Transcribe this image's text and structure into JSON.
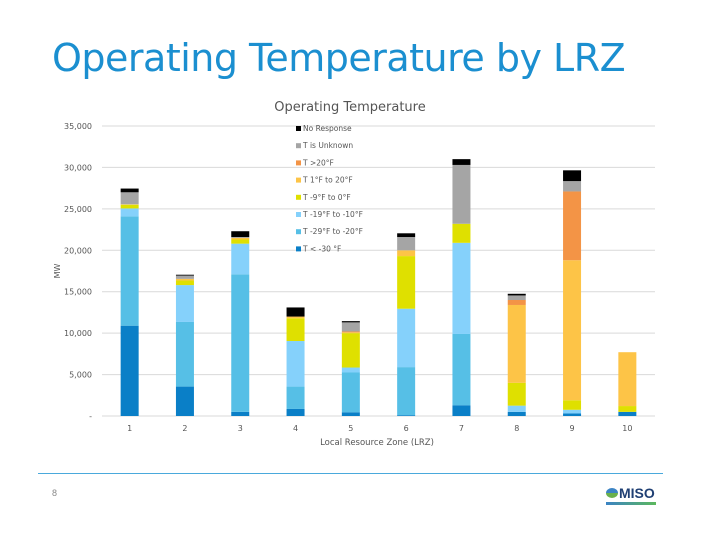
{
  "slide": {
    "title": "Operating Temperature by LRZ",
    "page_number": "8",
    "logo_text": "MISO",
    "accent_color": "#1b8fd0"
  },
  "chart_data": {
    "type": "bar",
    "stacked": true,
    "title": "Operating Temperature",
    "xlabel": "Local Resource Zone (LRZ)",
    "ylabel": "MW",
    "ylim": [
      0,
      35000
    ],
    "yticks": [
      0,
      5000,
      10000,
      15000,
      20000,
      25000,
      30000,
      35000
    ],
    "ytick_labels": [
      "-",
      "5,000",
      "10,000",
      "15,000",
      "20,000",
      "25,000",
      "30,000",
      "35,000"
    ],
    "grid": true,
    "legend_position": "top-center",
    "categories": [
      "1",
      "2",
      "3",
      "4",
      "5",
      "6",
      "7",
      "8",
      "9",
      "10"
    ],
    "series": [
      {
        "name": "T < -30 °F",
        "color": "#0a7fc7",
        "values": [
          10900,
          3550,
          500,
          850,
          450,
          100,
          1300,
          500,
          300,
          500
        ]
      },
      {
        "name": "T -29°F to -20°F",
        "color": "#56bfe6",
        "values": [
          13200,
          7800,
          16600,
          2700,
          4800,
          5800,
          8600,
          0,
          0,
          0
        ]
      },
      {
        "name": "T -19°F to -10°F",
        "color": "#85d1fb",
        "values": [
          950,
          4450,
          3700,
          5500,
          600,
          7050,
          11000,
          750,
          450,
          0
        ]
      },
      {
        "name": "T -9°F to 0°F",
        "color": "#dfe000",
        "values": [
          450,
          550,
          500,
          2750,
          4150,
          6350,
          2300,
          2750,
          1150,
          700
        ]
      },
      {
        "name": "T 1°F to 20°F",
        "color": "#fdc447",
        "values": [
          50,
          200,
          200,
          200,
          100,
          700,
          0,
          9400,
          16900,
          6500
        ]
      },
      {
        "name": "T >20°F",
        "color": "#f39446",
        "values": [
          0,
          0,
          0,
          0,
          100,
          0,
          0,
          600,
          8300,
          0
        ]
      },
      {
        "name": "T is Unknown",
        "color": "#a5a5a5",
        "values": [
          1450,
          400,
          100,
          0,
          1100,
          1600,
          7100,
          550,
          1250,
          0
        ]
      },
      {
        "name": "No Response",
        "color": "#000000",
        "values": [
          450,
          100,
          700,
          1100,
          150,
          450,
          700,
          200,
          1300,
          0
        ]
      }
    ]
  }
}
